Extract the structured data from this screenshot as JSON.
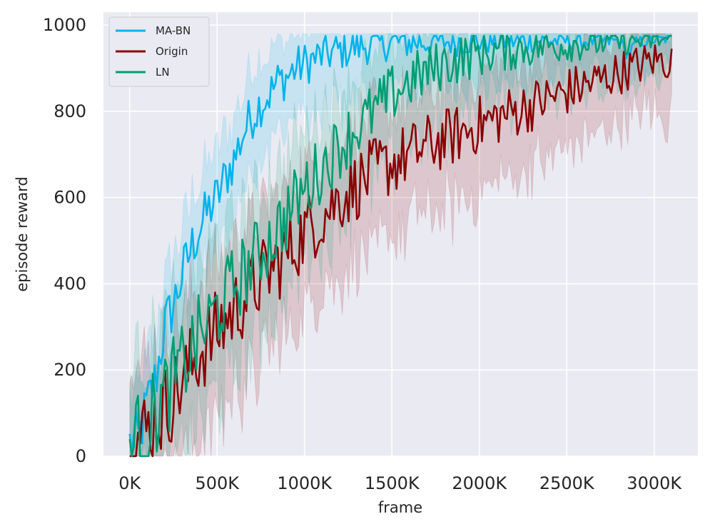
{
  "chart_data": {
    "type": "line",
    "title": "",
    "xlabel": "frame",
    "ylabel": "episode reward",
    "xlim": [
      -150000,
      3250000
    ],
    "ylim": [
      0,
      1030
    ],
    "grid": true,
    "legend_position": "top-left",
    "x_ticks": [
      {
        "value": 0,
        "label": "0K"
      },
      {
        "value": 500000,
        "label": "500K"
      },
      {
        "value": 1000000,
        "label": "1000K"
      },
      {
        "value": 1500000,
        "label": "1500K"
      },
      {
        "value": 2000000,
        "label": "2000K"
      },
      {
        "value": 2500000,
        "label": "2500K"
      },
      {
        "value": 3000000,
        "label": "3000K"
      }
    ],
    "y_ticks": [
      {
        "value": 0,
        "label": "0"
      },
      {
        "value": 200,
        "label": "200"
      },
      {
        "value": 400,
        "label": "400"
      },
      {
        "value": 600,
        "label": "600"
      },
      {
        "value": 800,
        "label": "800"
      },
      {
        "value": 1000,
        "label": "1000"
      }
    ],
    "series": [
      {
        "name": "MA-BN",
        "color": "#00b4eb",
        "x": [
          0,
          50000,
          100000,
          150000,
          200000,
          250000,
          300000,
          350000,
          400000,
          450000,
          500000,
          550000,
          600000,
          650000,
          700000,
          750000,
          800000,
          850000,
          900000,
          950000,
          1000000,
          1100000,
          1200000,
          1300000,
          1400000,
          1500000,
          1600000,
          1800000,
          2000000,
          2200000,
          2400000,
          2600000,
          2800000,
          2850000,
          2900000,
          3000000,
          3100000
        ],
        "y": [
          30,
          40,
          120,
          180,
          300,
          350,
          420,
          480,
          530,
          570,
          600,
          650,
          690,
          750,
          790,
          820,
          840,
          870,
          880,
          900,
          910,
          930,
          940,
          950,
          955,
          960,
          960,
          962,
          963,
          963,
          964,
          964,
          962,
          930,
          960,
          965,
          968
        ]
      },
      {
        "name": "Origin",
        "color": "#8b0000",
        "x": [
          0,
          100000,
          200000,
          300000,
          400000,
          500000,
          600000,
          700000,
          800000,
          900000,
          1000000,
          1100000,
          1200000,
          1300000,
          1400000,
          1500000,
          1600000,
          1700000,
          1800000,
          1900000,
          2000000,
          2100000,
          2200000,
          2300000,
          2400000,
          2500000,
          2600000,
          2700000,
          2800000,
          2900000,
          3000000,
          3100000
        ],
        "y": [
          20,
          60,
          110,
          170,
          240,
          290,
          340,
          390,
          430,
          470,
          520,
          560,
          600,
          630,
          660,
          680,
          700,
          720,
          735,
          750,
          770,
          785,
          800,
          815,
          830,
          845,
          860,
          875,
          890,
          905,
          920,
          915
        ]
      },
      {
        "name": "LN",
        "color": "#009e73",
        "x": [
          0,
          100000,
          200000,
          300000,
          400000,
          500000,
          600000,
          700000,
          800000,
          900000,
          1000000,
          1100000,
          1200000,
          1300000,
          1400000,
          1500000,
          1600000,
          1700000,
          1800000,
          1900000,
          2000000,
          2200000,
          2400000,
          2600000,
          2800000,
          3000000,
          3100000
        ],
        "y": [
          20,
          70,
          140,
          210,
          280,
          340,
          400,
          450,
          500,
          560,
          620,
          670,
          720,
          760,
          800,
          840,
          870,
          890,
          910,
          925,
          935,
          945,
          952,
          958,
          962,
          965,
          968
        ]
      }
    ]
  }
}
